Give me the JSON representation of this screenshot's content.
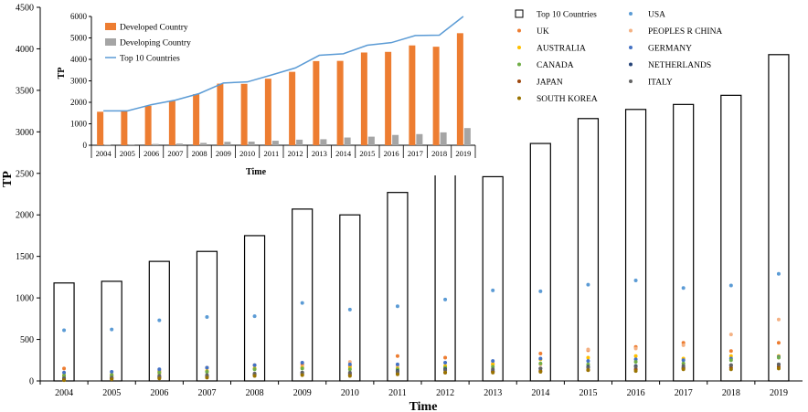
{
  "colors": {
    "developed": "#ED7D31",
    "developing": "#A5A5A5",
    "top10_line": "#5B9BD5",
    "box_stroke": "#000000"
  },
  "chart_data": [
    {
      "type": "bar",
      "title": "",
      "xlabel": "Time",
      "ylabel": "TP",
      "categories": [
        "2004",
        "2005",
        "2006",
        "2007",
        "2008",
        "2009",
        "2010",
        "2011",
        "2012",
        "2013",
        "2014",
        "2015",
        "2016",
        "2017",
        "2018",
        "2019"
      ],
      "ylim": [
        0,
        4500
      ],
      "yticks": [
        0,
        500,
        1000,
        1500,
        2000,
        2500,
        3000,
        3500,
        4000,
        4500
      ],
      "grid": false,
      "legend_position": "top-right",
      "series": [
        {
          "name": "Top 10 Countries",
          "kind": "bar-outline",
          "color": "#000000",
          "values": [
            1180,
            1200,
            1440,
            1560,
            1750,
            2070,
            2000,
            2270,
            2490,
            2460,
            2860,
            3160,
            3270,
            3330,
            3440,
            3930
          ]
        },
        {
          "name": "USA",
          "kind": "point",
          "color": "#5B9BD5",
          "values": [
            610,
            620,
            730,
            770,
            780,
            940,
            860,
            900,
            980,
            1090,
            1080,
            1160,
            1210,
            1120,
            1150,
            1290
          ]
        },
        {
          "name": "UK",
          "kind": "point",
          "color": "#ED7D31",
          "values": [
            150,
            60,
            120,
            160,
            190,
            200,
            180,
            300,
            280,
            200,
            330,
            370,
            410,
            460,
            360,
            460
          ]
        },
        {
          "name": "PEOPLES R CHINA",
          "kind": "point",
          "color": "#F4B183",
          "values": [
            40,
            45,
            80,
            110,
            150,
            170,
            230,
            180,
            160,
            210,
            200,
            380,
            390,
            430,
            560,
            740
          ]
        },
        {
          "name": "AUSTRALIA",
          "kind": "point",
          "color": "#FFC000",
          "values": [
            70,
            75,
            100,
            120,
            150,
            160,
            160,
            150,
            180,
            200,
            260,
            280,
            300,
            270,
            300,
            300
          ]
        },
        {
          "name": "GERMANY",
          "kind": "point",
          "color": "#4472C4",
          "values": [
            100,
            110,
            140,
            160,
            190,
            220,
            200,
            200,
            220,
            240,
            270,
            240,
            260,
            250,
            270,
            290
          ]
        },
        {
          "name": "CANADA",
          "kind": "point",
          "color": "#70AD47",
          "values": [
            60,
            70,
            100,
            110,
            140,
            150,
            140,
            140,
            160,
            170,
            210,
            200,
            230,
            210,
            250,
            280
          ]
        },
        {
          "name": "NETHERLANDS",
          "kind": "point",
          "color": "#264478",
          "values": [
            30,
            35,
            50,
            60,
            80,
            100,
            90,
            120,
            140,
            120,
            150,
            170,
            180,
            160,
            190,
            200
          ]
        },
        {
          "name": "JAPAN",
          "kind": "point",
          "color": "#9E480E",
          "values": [
            20,
            30,
            40,
            50,
            70,
            80,
            70,
            90,
            100,
            110,
            120,
            130,
            140,
            150,
            160,
            170
          ]
        },
        {
          "name": "ITALY",
          "kind": "point",
          "color": "#636363",
          "values": [
            30,
            40,
            60,
            70,
            90,
            100,
            100,
            110,
            130,
            140,
            150,
            160,
            170,
            180,
            190,
            200
          ]
        },
        {
          "name": "SOUTH KOREA",
          "kind": "point",
          "color": "#997300",
          "values": [
            10,
            20,
            30,
            40,
            60,
            70,
            60,
            80,
            100,
            100,
            110,
            130,
            120,
            140,
            140,
            150
          ]
        }
      ]
    },
    {
      "type": "bar",
      "title": "",
      "xlabel": "Time",
      "ylabel": "TP",
      "categories": [
        "2004",
        "2005",
        "2006",
        "2007",
        "2008",
        "2009",
        "2010",
        "2011",
        "2012",
        "2013",
        "2014",
        "2015",
        "2016",
        "2017",
        "2018",
        "2019"
      ],
      "ylim": [
        0,
        6000
      ],
      "yticks": [
        0,
        1000,
        2000,
        3000,
        4000,
        5000,
        6000
      ],
      "grid": false,
      "legend_position": "top-left",
      "series": [
        {
          "name": "Developed Country",
          "kind": "bar",
          "color": "#ED7D31",
          "values": [
            1560,
            1580,
            1840,
            2060,
            2380,
            2870,
            2860,
            3100,
            3420,
            3920,
            3930,
            4320,
            4350,
            4650,
            4590,
            5220
          ]
        },
        {
          "name": "Developing Country",
          "kind": "bar",
          "color": "#A5A5A5",
          "values": [
            30,
            40,
            60,
            80,
            110,
            160,
            170,
            210,
            260,
            280,
            360,
            400,
            480,
            520,
            600,
            800
          ]
        },
        {
          "name": "Top 10 Countries",
          "kind": "line",
          "color": "#5B9BD5",
          "values": [
            1600,
            1600,
            1890,
            2100,
            2410,
            2900,
            2950,
            3270,
            3600,
            4190,
            4260,
            4660,
            4780,
            5110,
            5130,
            6000
          ]
        }
      ]
    }
  ]
}
